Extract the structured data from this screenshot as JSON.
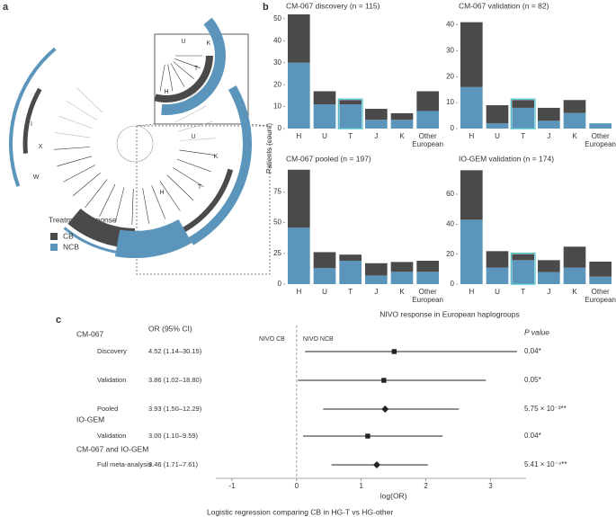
{
  "panel_labels": [
    "a",
    "b",
    "c"
  ],
  "tree": {
    "legend_title": "Treatment response",
    "labels": [
      "U",
      "K",
      "T",
      "H",
      "U",
      "K",
      "T",
      "H",
      "X",
      "W",
      "I"
    ]
  },
  "b_axes": {
    "ylabel": "Patients (count)",
    "xlabel": "NIVO response in European haplogroups"
  },
  "chart_data": [
    {
      "type": "bar",
      "stacked": true,
      "title": "CM-067 discovery (n = 115)",
      "categories": [
        "H",
        "U",
        "T",
        "J",
        "K",
        "Other European"
      ],
      "series": [
        {
          "name": "NCB",
          "color": "#5b95bc",
          "values": [
            30,
            11,
            11,
            4,
            4,
            8
          ]
        },
        {
          "name": "CB",
          "color": "#4a4a4a",
          "values": [
            22,
            6,
            2,
            5,
            3,
            9
          ]
        }
      ],
      "ylim": [
        0,
        52
      ],
      "yticks": [
        0,
        10,
        20,
        30,
        40,
        50
      ],
      "highlight": "T",
      "highlight_color": "#4fc1c9"
    },
    {
      "type": "bar",
      "stacked": true,
      "title": "CM-067 validation (n = 82)",
      "categories": [
        "H",
        "U",
        "T",
        "J",
        "K",
        "Other European"
      ],
      "series": [
        {
          "name": "NCB",
          "color": "#5b95bc",
          "values": [
            16,
            2,
            8,
            3,
            6,
            2
          ]
        },
        {
          "name": "CB",
          "color": "#4a4a4a",
          "values": [
            25,
            7,
            3,
            5,
            5,
            0
          ]
        }
      ],
      "ylim": [
        0,
        44
      ],
      "yticks": [
        0,
        10,
        20,
        30,
        40
      ],
      "highlight": "T",
      "highlight_color": "#4fc1c9"
    },
    {
      "type": "bar",
      "stacked": true,
      "title": "CM-067 pooled (n = 197)",
      "categories": [
        "H",
        "U",
        "T",
        "J",
        "K",
        "Other European"
      ],
      "series": [
        {
          "name": "NCB",
          "color": "#5b95bc",
          "values": [
            46,
            13,
            19,
            7,
            10,
            10
          ]
        },
        {
          "name": "CB",
          "color": "#4a4a4a",
          "values": [
            47,
            13,
            5,
            10,
            8,
            9
          ]
        }
      ],
      "ylim": [
        0,
        95
      ],
      "yticks": [
        0,
        25,
        50,
        75
      ]
    },
    {
      "type": "bar",
      "stacked": true,
      "title": "IO-GEM validation (n = 174)",
      "categories": [
        "H",
        "U",
        "T",
        "J",
        "K",
        "Other European"
      ],
      "series": [
        {
          "name": "NCB",
          "color": "#5b95bc",
          "values": [
            43,
            11,
            16,
            8,
            11,
            5
          ]
        },
        {
          "name": "CB",
          "color": "#4a4a4a",
          "values": [
            33,
            11,
            4,
            8,
            14,
            10
          ]
        }
      ],
      "ylim": [
        0,
        78
      ],
      "yticks": [
        0,
        20,
        40,
        60
      ],
      "highlight": "T",
      "highlight_color": "#4fc1c9"
    },
    {
      "type": "forest",
      "or_header": "OR (95% CI)",
      "p_header": "P value",
      "reference_labels": [
        "NIVO CB",
        "NIVO NCB"
      ],
      "xlabel": "log(OR)",
      "caption": "Logistic regression comparing CB in HG-T vs HG-other",
      "xlim": [
        -1.25,
        3.55
      ],
      "xticks": [
        -1,
        0,
        1,
        2,
        3
      ],
      "color": "#222222",
      "groups": [
        {
          "name": "CM-067",
          "rows": [
            {
              "label": "Discovery",
              "or_text": "4.52 (1.14–30.15)",
              "value": 1.51,
              "lo": 0.13,
              "hi": 3.41,
              "p": "0.04*",
              "marker": "square"
            },
            {
              "label": "Validation",
              "or_text": "3.86 (1.02–18.80)",
              "value": 1.35,
              "lo": 0.02,
              "hi": 2.93,
              "p": "0.05*",
              "marker": "square"
            },
            {
              "label": "Pooled",
              "or_text": "3.93 (1.50–12.29)",
              "value": 1.37,
              "lo": 0.41,
              "hi": 2.51,
              "p": "5.75 × 10⁻³**",
              "marker": "diamond"
            }
          ]
        },
        {
          "name": "IO-GEM",
          "rows": [
            {
              "label": "Validation",
              "or_text": "3.00 (1.10–9.59)",
              "value": 1.1,
              "lo": 0.1,
              "hi": 2.26,
              "p": "0.04*",
              "marker": "square"
            }
          ]
        },
        {
          "name": "CM-067 and IO-GEM",
          "rows": [
            {
              "label": "Full meta-analysis",
              "or_text": "3.46 (1.71–7.61)",
              "value": 1.24,
              "lo": 0.54,
              "hi": 2.03,
              "p": "5.41 × 10⁻⁴**",
              "marker": "diamond"
            }
          ]
        }
      ]
    }
  ]
}
